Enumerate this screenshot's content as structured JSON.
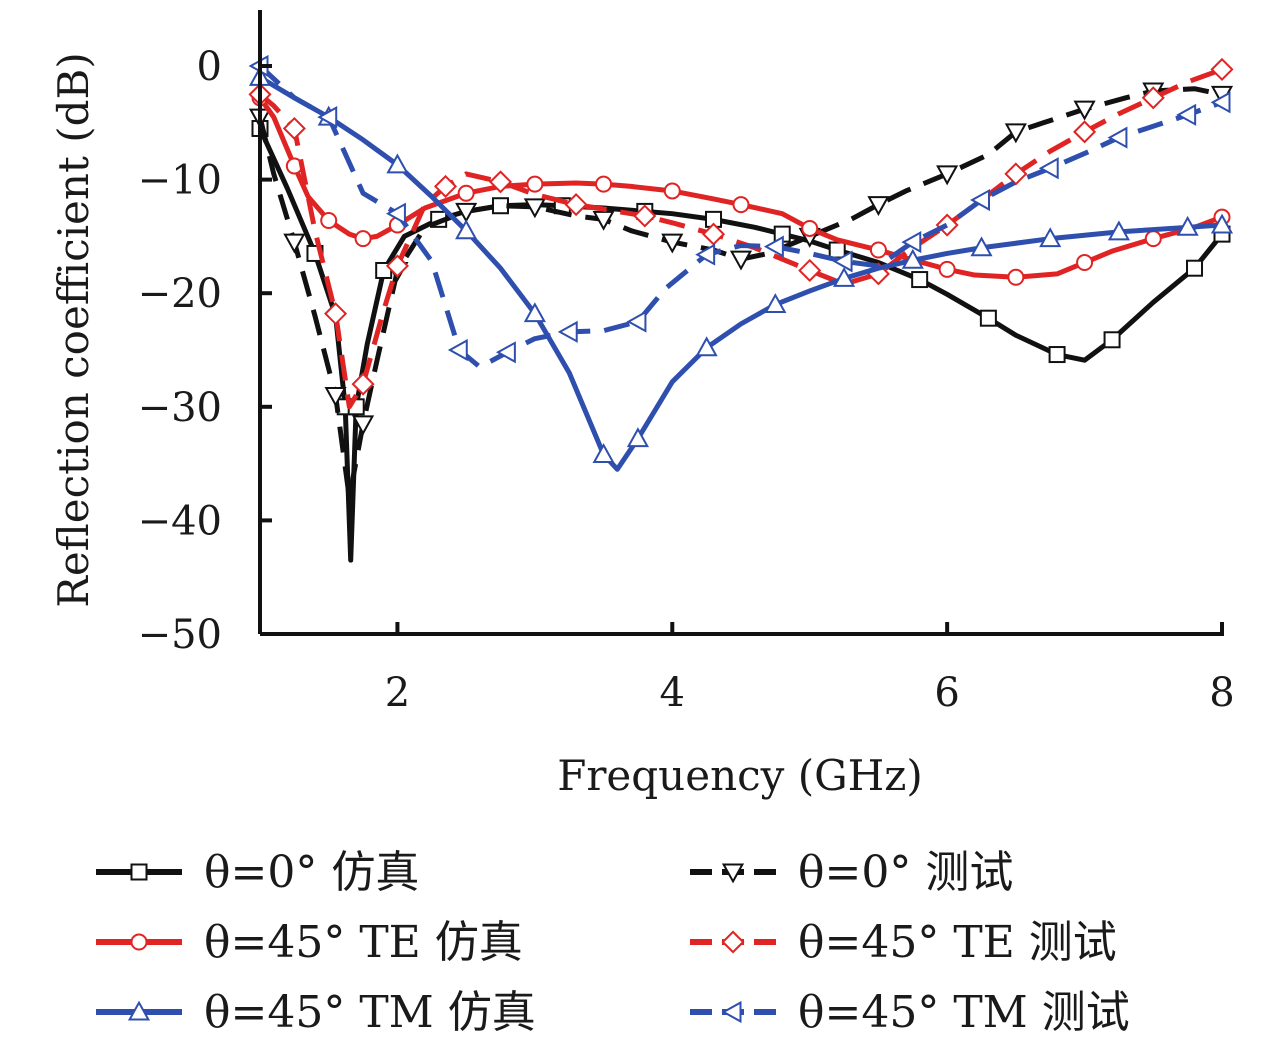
{
  "chart_data": {
    "type": "line",
    "xlabel": "Frequency (GHz)",
    "ylabel": "Reflection coefficient (dB)",
    "xlim": [
      1,
      8
    ],
    "ylim": [
      -50,
      5
    ],
    "xticks": [
      2,
      4,
      6,
      8
    ],
    "xtick_labels": [
      "2",
      "4",
      "6",
      "8"
    ],
    "yticks": [
      0,
      -10,
      -20,
      -30,
      -40,
      -50
    ],
    "ytick_labels": [
      "0",
      "−10",
      "−20",
      "−30",
      "−40",
      "−50"
    ],
    "grid": false,
    "legend_position": "bottom, two columns",
    "series": [
      {
        "name": "θ=0° 仿真",
        "color": "#111111",
        "dashed": false,
        "marker": "square",
        "x": [
          1.0,
          1.2,
          1.4,
          1.55,
          1.62,
          1.66,
          1.7,
          1.78,
          1.9,
          2.05,
          2.3,
          2.5,
          2.75,
          3.0,
          3.2,
          3.5,
          3.8,
          4.0,
          4.3,
          4.6,
          4.8,
          5.0,
          5.2,
          5.5,
          5.8,
          6.0,
          6.3,
          6.5,
          6.8,
          7.0,
          7.2,
          7.5,
          7.8,
          8.0
        ],
        "y": [
          -5.5,
          -10.8,
          -16.5,
          -22,
          -30,
          -43.5,
          -30,
          -24.5,
          -18,
          -15,
          -13.5,
          -12.8,
          -12.3,
          -12.2,
          -12.3,
          -12.5,
          -12.8,
          -13,
          -13.5,
          -14.2,
          -14.8,
          -15.4,
          -16.2,
          -17.3,
          -18.8,
          -20.1,
          -22.2,
          -23.7,
          -25.4,
          -25.9,
          -24.1,
          -20.8,
          -17.8,
          -14.8
        ]
      },
      {
        "name": "θ=0° 测试",
        "color": "#111111",
        "dashed": true,
        "marker": "triangle-down",
        "x": [
          1.0,
          1.1,
          1.25,
          1.4,
          1.55,
          1.65,
          1.75,
          1.85,
          2.0,
          2.2,
          2.5,
          2.75,
          3.0,
          3.3,
          3.5,
          3.7,
          4.0,
          4.3,
          4.5,
          4.7,
          5.0,
          5.3,
          5.5,
          5.7,
          6.0,
          6.3,
          6.5,
          6.7,
          7.0,
          7.3,
          7.5,
          7.8,
          8.0
        ],
        "y": [
          -4.5,
          -9.5,
          -15.5,
          -22,
          -29,
          -38,
          -31.5,
          -26,
          -18,
          -14.2,
          -12.8,
          -12.3,
          -12.4,
          -13.2,
          -13.5,
          -14.5,
          -15.5,
          -16.2,
          -17,
          -16.5,
          -15,
          -13.5,
          -12.2,
          -11,
          -9.5,
          -7.8,
          -5.8,
          -5.0,
          -3.8,
          -2.8,
          -2.2,
          -2.0,
          -2.5
        ]
      },
      {
        "name": "θ=45° TE 仿真",
        "color": "#e02424",
        "dashed": false,
        "marker": "circle",
        "x": [
          1.0,
          1.1,
          1.25,
          1.35,
          1.5,
          1.65,
          1.75,
          1.85,
          2.0,
          2.2,
          2.5,
          2.75,
          3.0,
          3.3,
          3.5,
          3.7,
          4.0,
          4.3,
          4.5,
          4.8,
          5.0,
          5.2,
          5.5,
          5.7,
          6.0,
          6.2,
          6.5,
          6.8,
          7.0,
          7.2,
          7.5,
          7.8,
          8.0
        ],
        "y": [
          -2.8,
          -4.5,
          -8.8,
          -11.5,
          -13.6,
          -14.8,
          -15.2,
          -15,
          -14,
          -12.5,
          -11.2,
          -10.6,
          -10.4,
          -10.3,
          -10.4,
          -10.6,
          -11.0,
          -11.7,
          -12.2,
          -13,
          -14.3,
          -15.3,
          -16.2,
          -16.9,
          -17.9,
          -18.4,
          -18.6,
          -18.3,
          -17.3,
          -16.3,
          -15.2,
          -14.2,
          -13.3
        ]
      },
      {
        "name": "θ=45° TE 测试",
        "color": "#e02424",
        "dashed": true,
        "marker": "diamond",
        "x": [
          1.0,
          1.1,
          1.25,
          1.4,
          1.55,
          1.65,
          1.75,
          1.9,
          2.0,
          2.2,
          2.35,
          2.5,
          2.75,
          3.0,
          3.3,
          3.5,
          3.8,
          4.0,
          4.3,
          4.6,
          5.0,
          5.25,
          5.5,
          5.75,
          6.0,
          6.25,
          6.5,
          6.75,
          7.0,
          7.25,
          7.5,
          7.75,
          8.0
        ],
        "y": [
          -2.5,
          -3.5,
          -5.5,
          -14.5,
          -21.8,
          -30,
          -28,
          -21.5,
          -17.6,
          -12.2,
          -10.6,
          -9.5,
          -10.2,
          -11.3,
          -12.2,
          -12.6,
          -13.2,
          -13.8,
          -14.8,
          -16.0,
          -18.0,
          -19.2,
          -18.3,
          -16.0,
          -14.0,
          -11.8,
          -9.5,
          -7.5,
          -5.8,
          -4.2,
          -2.8,
          -1.4,
          -0.3
        ]
      },
      {
        "name": "θ=45° TM 仿真",
        "color": "#2f4fae",
        "dashed": false,
        "marker": "triangle-up",
        "x": [
          1.0,
          1.25,
          1.5,
          1.75,
          2.0,
          2.25,
          2.5,
          2.75,
          3.0,
          3.25,
          3.5,
          3.6,
          3.75,
          4.0,
          4.25,
          4.5,
          4.75,
          5.0,
          5.25,
          5.5,
          5.75,
          6.0,
          6.25,
          6.5,
          6.75,
          7.0,
          7.25,
          7.5,
          7.75,
          8.0
        ],
        "y": [
          -1,
          -2.8,
          -4.5,
          -6.5,
          -8.7,
          -11.5,
          -14.5,
          -17.8,
          -21.8,
          -27,
          -34.2,
          -35.5,
          -32.8,
          -27.8,
          -24.8,
          -22.7,
          -21,
          -19.8,
          -18.7,
          -17.8,
          -17.1,
          -16.5,
          -16.0,
          -15.6,
          -15.2,
          -14.9,
          -14.6,
          -14.4,
          -14.2,
          -14.0
        ]
      },
      {
        "name": "θ=45° TM 测试",
        "color": "#2f4fae",
        "dashed": true,
        "marker": "triangle-left",
        "x": [
          1.0,
          1.25,
          1.5,
          1.75,
          2.0,
          2.25,
          2.45,
          2.6,
          2.8,
          3.0,
          3.25,
          3.5,
          3.75,
          3.95,
          4.25,
          4.5,
          4.75,
          5.0,
          5.25,
          5.5,
          5.75,
          6.0,
          6.25,
          6.5,
          6.75,
          7.0,
          7.25,
          7.5,
          7.75,
          8.0
        ],
        "y": [
          0,
          -2.8,
          -4.5,
          -11.2,
          -13.0,
          -17.2,
          -25.0,
          -26.5,
          -25.2,
          -24.0,
          -23.4,
          -23.3,
          -22.5,
          -19.6,
          -16.6,
          -15.8,
          -15.9,
          -16.5,
          -17.2,
          -17.6,
          -15.5,
          -14.0,
          -11.8,
          -10.2,
          -9.0,
          -7.7,
          -6.3,
          -5.3,
          -4.3,
          -3.2
        ]
      }
    ]
  }
}
